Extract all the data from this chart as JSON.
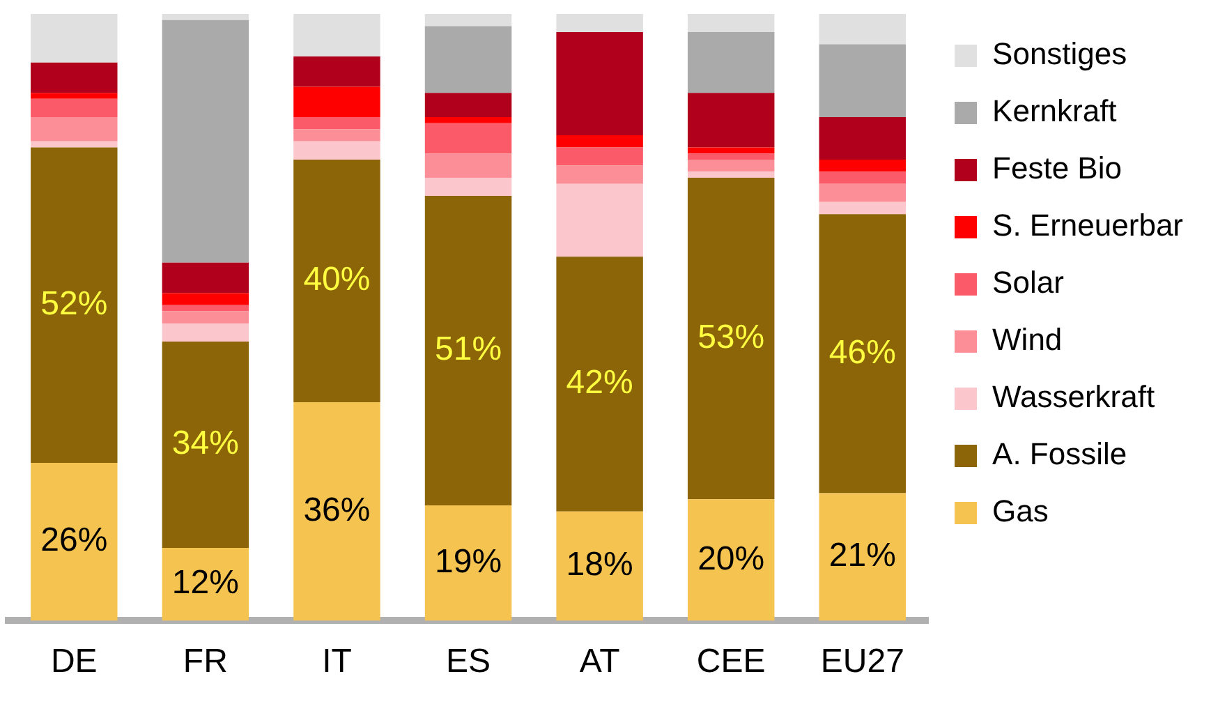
{
  "chart_data": {
    "type": "bar",
    "stacked": true,
    "categories": [
      "DE",
      "FR",
      "IT",
      "ES",
      "AT",
      "CEE",
      "EU27"
    ],
    "ylim": [
      0,
      100
    ],
    "tick_labels": "x",
    "grid": false,
    "legend": "right",
    "series": [
      {
        "name": "Gas",
        "color": "#f5c350",
        "values": [
          26,
          12,
          36,
          19,
          18,
          20,
          21
        ],
        "value_labels": [
          "26%",
          "12%",
          "36%",
          "19%",
          "18%",
          "20%",
          "21%"
        ]
      },
      {
        "name": "A. Fossile",
        "color": "#8b6508",
        "values": [
          52,
          34,
          40,
          51,
          42,
          53,
          46
        ],
        "value_labels": [
          "52%",
          "34%",
          "40%",
          "51%",
          "42%",
          "53%",
          "46%"
        ]
      },
      {
        "name": "Wasserkraft",
        "color": "#fbc6cc",
        "values": [
          1,
          3,
          3,
          3,
          12,
          1,
          2
        ]
      },
      {
        "name": "Wind",
        "color": "#fb8e96",
        "values": [
          4,
          2,
          2,
          4,
          3,
          2,
          3
        ]
      },
      {
        "name": "Solar",
        "color": "#fb5a68",
        "values": [
          3,
          1,
          2,
          5,
          3,
          1,
          2
        ]
      },
      {
        "name": "S. Erneuerbar",
        "color": "#ff0000",
        "values": [
          1,
          2,
          5,
          1,
          2,
          1,
          2
        ]
      },
      {
        "name": "Feste Bio",
        "color": "#b0001c",
        "values": [
          5,
          5,
          5,
          4,
          17,
          9,
          7
        ]
      },
      {
        "name": "Kernkraft",
        "color": "#aaaaaa",
        "values": [
          0,
          40,
          0,
          11,
          0,
          10,
          12
        ]
      },
      {
        "name": "Sonstiges",
        "color": "#e0e0e0",
        "values": [
          8,
          1,
          7,
          2,
          3,
          3,
          5
        ]
      }
    ]
  }
}
